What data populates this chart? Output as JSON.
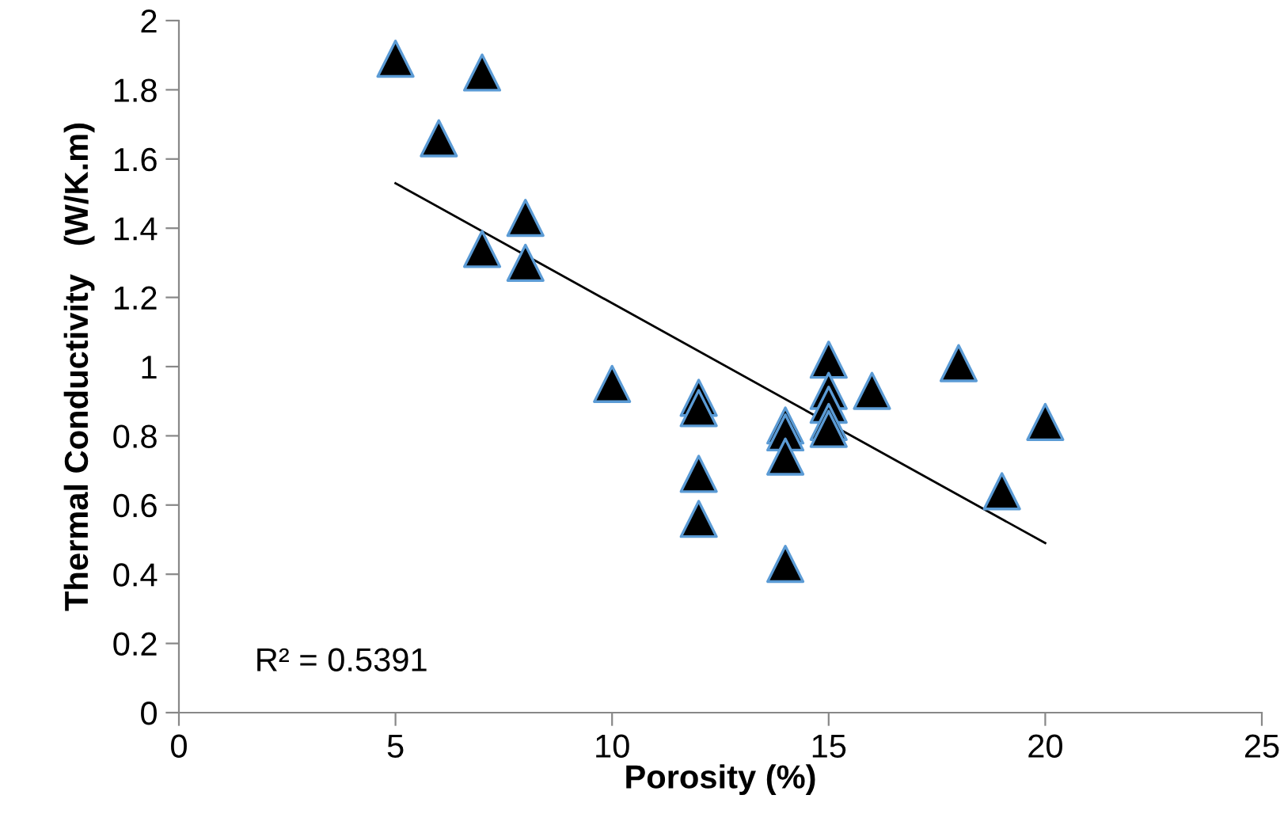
{
  "chart_data": {
    "type": "scatter",
    "xlabel": "Porosity (%)",
    "ylabel": "Thermal Conductivity   (W/K.m)",
    "series": [
      {
        "color": "#000000",
        "marker": "triangle",
        "x": [
          5,
          7,
          6,
          8,
          7,
          8,
          10,
          12,
          12,
          12,
          12,
          14,
          14,
          14,
          14,
          15,
          15,
          15,
          15,
          15,
          16,
          18,
          19,
          20
        ],
        "values": [
          1.89,
          1.85,
          1.66,
          1.43,
          1.34,
          1.3,
          0.95,
          0.91,
          0.88,
          0.69,
          0.56,
          0.83,
          0.81,
          0.74,
          0.43,
          1.02,
          0.93,
          0.89,
          0.84,
          0.82,
          0.93,
          1.01,
          0.64,
          0.84
        ]
      },
      {
        "type": "line",
        "color": "#000000",
        "marker": "none",
        "x": [
          5,
          20
        ],
        "values": [
          1.53,
          0.49
        ]
      }
    ],
    "annotations": [
      "R² = 0.5391"
    ],
    "xlim": [
      0,
      25
    ],
    "xticks": [
      0,
      5,
      10,
      15,
      20,
      25
    ],
    "ylim": [
      0,
      2
    ],
    "yticks": [
      0,
      0.2,
      0.4,
      0.6,
      0.8,
      1,
      1.2,
      1.4,
      1.6,
      1.8,
      2
    ],
    "grid": false,
    "legend": false
  }
}
